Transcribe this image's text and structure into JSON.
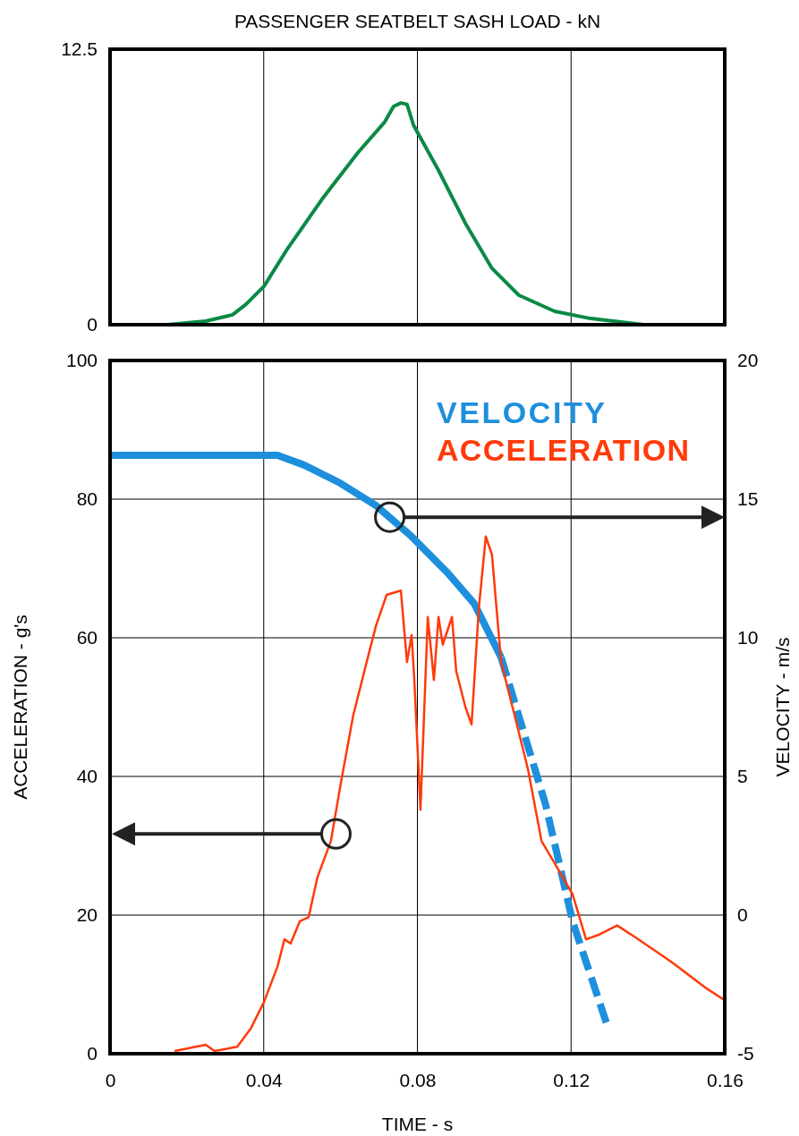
{
  "chart_data": [
    {
      "type": "line",
      "title": "PASSENGER SEATBELT SASH LOAD - kN",
      "xlim": [
        0,
        0.16
      ],
      "xticks": [
        0,
        0.04,
        0.08,
        0.12,
        0.16
      ],
      "ylim": [
        0,
        12.5
      ],
      "yticks": [
        0,
        12.5
      ],
      "grid": "x",
      "tick_labels": "y",
      "legend": false,
      "series": [
        {
          "color": "#0a8a45",
          "x": [
            0.0149,
            0.0249,
            0.0319,
            0.0354,
            0.0401,
            0.0459,
            0.0552,
            0.0645,
            0.0715,
            0.0738,
            0.0757,
            0.0773,
            0.079,
            0.0855,
            0.0925,
            0.0994,
            0.1064,
            0.1157,
            0.1251,
            0.139
          ],
          "values": [
            0,
            0.16,
            0.45,
            0.93,
            1.75,
            3.37,
            5.7,
            7.8,
            9.2,
            9.9,
            10.06,
            10.0,
            9.05,
            7.0,
            4.6,
            2.56,
            1.34,
            0.61,
            0.28,
            0
          ]
        }
      ]
    },
    {
      "type": "line",
      "xlim": [
        0,
        0.16
      ],
      "xticks": [
        0,
        0.04,
        0.08,
        0.12,
        0.16
      ],
      "ylim": [
        0,
        100
      ],
      "yticks": [
        0,
        20,
        40,
        60,
        80,
        100
      ],
      "y2lim": [
        -5,
        20
      ],
      "y2ticks": [
        -5,
        0,
        5,
        10,
        15,
        20
      ],
      "xlabel": "TIME - s",
      "ylabel": "ACCELERATION - g's",
      "y2label": "VELOCITY - m/s",
      "grid": true,
      "legend": "top right",
      "series": [
        {
          "name": "VELOCITY",
          "color": "#1e8fdc",
          "axis": "y2",
          "line_style": "solid",
          "x": [
            0,
            0.0262,
            0.0436,
            0.0505,
            0.0599,
            0.0692,
            0.0785,
            0.0878,
            0.0948,
            0.1018
          ],
          "values": [
            16.58,
            16.58,
            16.58,
            16.23,
            15.58,
            14.77,
            13.65,
            12.35,
            11.23,
            9.29
          ]
        },
        {
          "color": "#1e8fdc",
          "axis": "y2",
          "line_style": "dashed",
          "x": [
            0.1018,
            0.1134,
            0.1204,
            0.1297
          ],
          "values": [
            9.29,
            3.97,
            -0.23,
            -4.1
          ]
        },
        {
          "name": "ACCELERATION",
          "color": "#ff3a0a",
          "line_style": "solid",
          "x": [
            0.0168,
            0.0249,
            0.0272,
            0.0331,
            0.0366,
            0.0401,
            0.0436,
            0.0454,
            0.047,
            0.0494,
            0.0517,
            0.054,
            0.0575,
            0.0599,
            0.0633,
            0.0668,
            0.0692,
            0.072,
            0.0757,
            0.0773,
            0.0785,
            0.0792,
            0.0808,
            0.0827,
            0.0843,
            0.0855,
            0.0866,
            0.089,
            0.0901,
            0.0925,
            0.0941,
            0.096,
            0.0978,
            0.0994,
            0.1018,
            0.1053,
            0.1088,
            0.1123,
            0.1157,
            0.1204,
            0.1239,
            0.1274,
            0.132,
            0.1367,
            0.146,
            0.1553,
            0.16
          ],
          "values": [
            0.4,
            1.3,
            0.4,
            1,
            3.6,
            7.5,
            12.6,
            16.5,
            15.9,
            19.1,
            19.7,
            25.5,
            30.7,
            38.5,
            48.8,
            56.5,
            61.7,
            66.2,
            66.8,
            56.5,
            60.4,
            53.9,
            35.2,
            63,
            53.9,
            63,
            59,
            63,
            55.2,
            50,
            47.5,
            64.3,
            74.6,
            72,
            56.5,
            48.8,
            41,
            30.7,
            27.5,
            23,
            16.5,
            17.2,
            18.5,
            16.8,
            13.3,
            9.4,
            7.7
          ]
        }
      ]
    }
  ]
}
